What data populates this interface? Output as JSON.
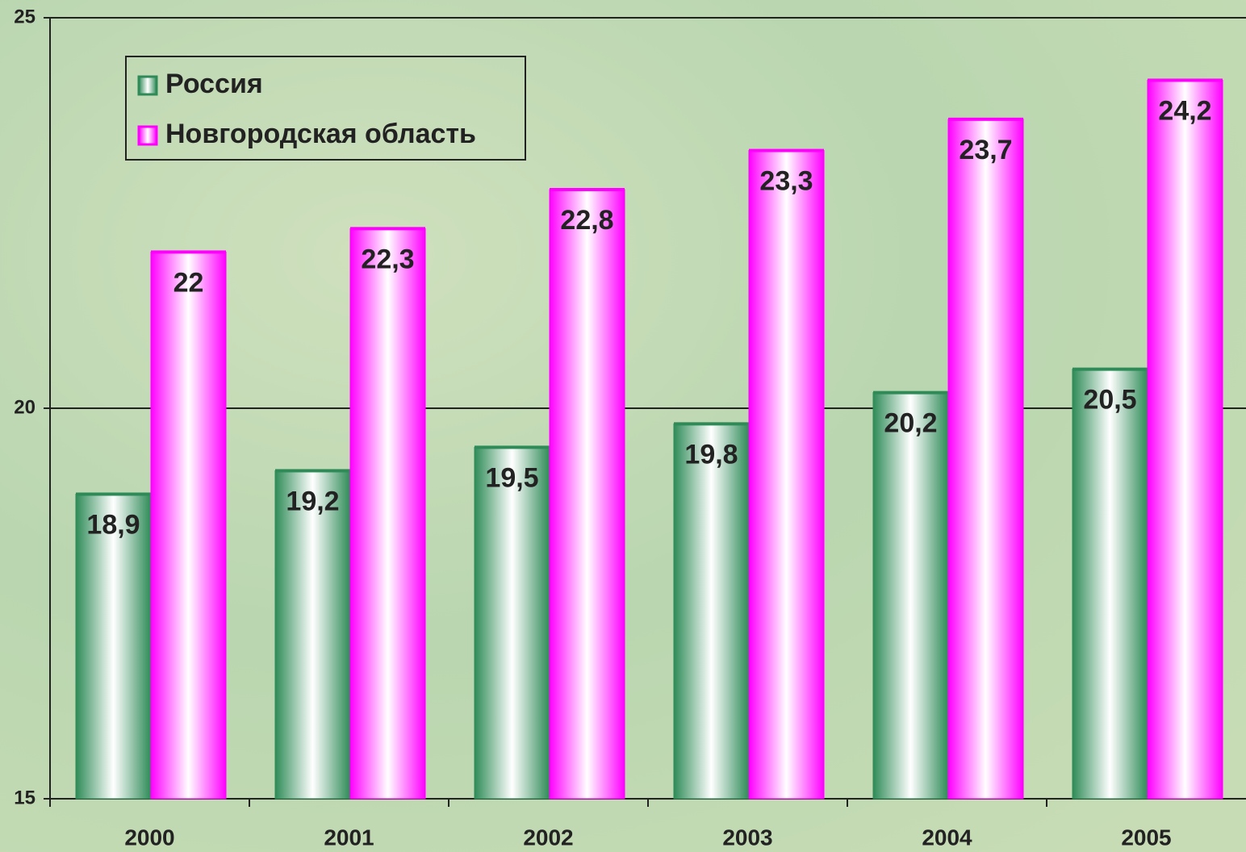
{
  "chart_data": {
    "type": "bar",
    "categories": [
      "2000",
      "2001",
      "2002",
      "2003",
      "2004",
      "2005"
    ],
    "series": [
      {
        "name": "Россия",
        "color": "#2e8b57",
        "values": [
          18.9,
          19.2,
          19.5,
          19.8,
          20.2,
          20.5
        ],
        "value_labels": [
          "18,9",
          "19,2",
          "19,5",
          "19,8",
          "20,2",
          "20,5"
        ]
      },
      {
        "name": "Новгородская область",
        "color": "#ff00ff",
        "values": [
          22,
          22.3,
          22.8,
          23.3,
          23.7,
          24.2
        ],
        "value_labels": [
          "22",
          "22,3",
          "22,8",
          "23,3",
          "23,7",
          "24,2"
        ]
      }
    ],
    "ylim": [
      15,
      25
    ],
    "yticks": [
      15,
      20,
      25
    ],
    "grid": true,
    "legend": "top-left"
  }
}
